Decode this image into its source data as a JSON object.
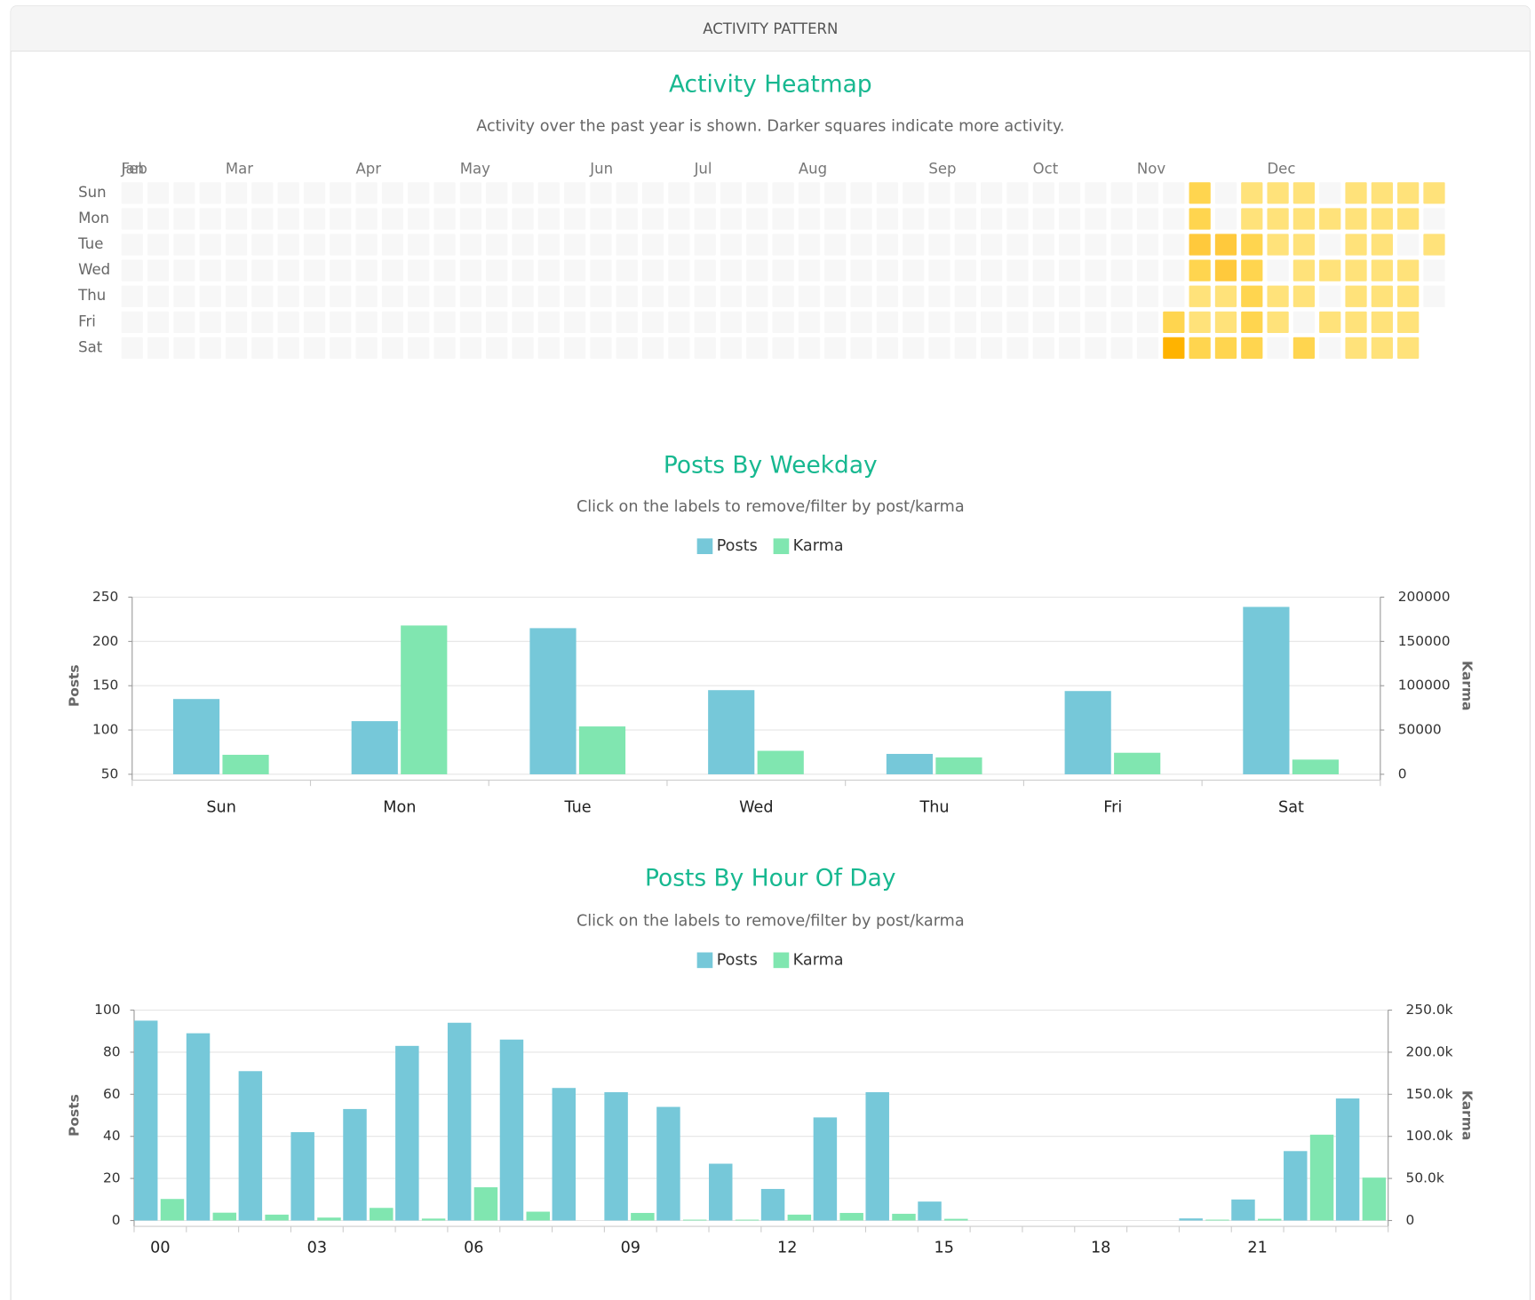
{
  "header": "ACTIVITY PATTERN",
  "chart_data": [
    {
      "type": "heatmap",
      "title": "Activity Heatmap",
      "subtitle": "Activity over the past year is shown. Darker squares indicate more activity.",
      "rows": [
        "Sun",
        "Mon",
        "Tue",
        "Wed",
        "Thu",
        "Fri",
        "Sat"
      ],
      "month_labels": [
        {
          "label": "Jan",
          "week": 0
        },
        {
          "label": "Feb",
          "week": 0
        },
        {
          "label": "Mar",
          "week": 4
        },
        {
          "label": "Apr",
          "week": 9
        },
        {
          "label": "May",
          "week": 13
        },
        {
          "label": "Jun",
          "week": 18
        },
        {
          "label": "Jul",
          "week": 22
        },
        {
          "label": "Aug",
          "week": 26
        },
        {
          "label": "Sep",
          "week": 31
        },
        {
          "label": "Oct",
          "week": 35
        },
        {
          "label": "Nov",
          "week": 39
        },
        {
          "label": "Dec",
          "week": 44
        }
      ],
      "colors": [
        "#f7f7f7",
        "#ffe27a",
        "#ffd54f",
        "#ffc93c",
        "#ffb300"
      ],
      "values": [
        [
          0,
          0,
          0,
          0,
          0,
          0,
          0
        ],
        [
          0,
          0,
          0,
          0,
          0,
          0,
          0
        ],
        [
          0,
          0,
          0,
          0,
          0,
          0,
          0
        ],
        [
          0,
          0,
          0,
          0,
          0,
          0,
          0
        ],
        [
          0,
          0,
          0,
          0,
          0,
          0,
          0
        ],
        [
          0,
          0,
          0,
          0,
          0,
          0,
          0
        ],
        [
          0,
          0,
          0,
          0,
          0,
          0,
          0
        ],
        [
          0,
          0,
          0,
          0,
          0,
          0,
          0
        ],
        [
          0,
          0,
          0,
          0,
          0,
          0,
          0
        ],
        [
          0,
          0,
          0,
          0,
          0,
          0,
          0
        ],
        [
          0,
          0,
          0,
          0,
          0,
          0,
          0
        ],
        [
          0,
          0,
          0,
          0,
          0,
          0,
          0
        ],
        [
          0,
          0,
          0,
          0,
          0,
          0,
          0
        ],
        [
          0,
          0,
          0,
          0,
          0,
          0,
          0
        ],
        [
          0,
          0,
          0,
          0,
          0,
          0,
          0
        ],
        [
          0,
          0,
          0,
          0,
          0,
          0,
          0
        ],
        [
          0,
          0,
          0,
          0,
          0,
          0,
          0
        ],
        [
          0,
          0,
          0,
          0,
          0,
          0,
          0
        ],
        [
          0,
          0,
          0,
          0,
          0,
          0,
          0
        ],
        [
          0,
          0,
          0,
          0,
          0,
          0,
          0
        ],
        [
          0,
          0,
          0,
          0,
          0,
          0,
          0
        ],
        [
          0,
          0,
          0,
          0,
          0,
          0,
          0
        ],
        [
          0,
          0,
          0,
          0,
          0,
          0,
          0
        ],
        [
          0,
          0,
          0,
          0,
          0,
          0,
          0
        ],
        [
          0,
          0,
          0,
          0,
          0,
          0,
          0
        ],
        [
          0,
          0,
          0,
          0,
          0,
          0,
          0
        ],
        [
          0,
          0,
          0,
          0,
          0,
          0,
          0
        ],
        [
          0,
          0,
          0,
          0,
          0,
          0,
          0
        ],
        [
          0,
          0,
          0,
          0,
          0,
          0,
          0
        ],
        [
          0,
          0,
          0,
          0,
          0,
          0,
          0
        ],
        [
          0,
          0,
          0,
          0,
          0,
          0,
          0
        ],
        [
          0,
          0,
          0,
          0,
          0,
          0,
          0
        ],
        [
          0,
          0,
          0,
          0,
          0,
          0,
          0
        ],
        [
          0,
          0,
          0,
          0,
          0,
          0,
          0
        ],
        [
          0,
          0,
          0,
          0,
          0,
          0,
          0
        ],
        [
          0,
          0,
          0,
          0,
          0,
          0,
          0
        ],
        [
          0,
          0,
          0,
          0,
          0,
          0,
          0
        ],
        [
          0,
          0,
          0,
          0,
          0,
          0,
          0
        ],
        [
          0,
          0,
          0,
          0,
          0,
          0,
          0
        ],
        [
          0,
          0,
          0,
          0,
          0,
          0,
          0
        ],
        [
          0,
          0,
          0,
          0,
          0,
          2,
          4
        ],
        [
          2,
          2,
          3,
          2,
          1,
          1,
          2
        ],
        [
          0,
          0,
          3,
          3,
          1,
          1,
          2
        ],
        [
          1,
          1,
          2,
          2,
          2,
          2,
          2
        ],
        [
          1,
          1,
          1,
          0,
          1,
          1,
          0
        ],
        [
          1,
          1,
          1,
          1,
          1,
          0,
          2
        ],
        [
          0,
          1,
          0,
          1,
          0,
          1,
          0
        ],
        [
          1,
          1,
          1,
          1,
          1,
          1,
          1
        ],
        [
          1,
          1,
          1,
          1,
          1,
          1,
          1
        ],
        [
          1,
          1,
          0,
          1,
          1,
          1,
          1
        ],
        [
          1,
          0,
          1,
          0,
          0,
          null,
          null
        ]
      ]
    },
    {
      "type": "bar",
      "title": "Posts By Weekday",
      "subtitle": "Click on the labels to remove/filter by post/karma",
      "categories": [
        "Sun",
        "Mon",
        "Tue",
        "Wed",
        "Thu",
        "Fri",
        "Sat"
      ],
      "series": [
        {
          "name": "Posts",
          "color": "#76c8d9",
          "values": [
            135,
            110,
            215,
            145,
            73,
            144,
            239
          ]
        },
        {
          "name": "Karma",
          "color": "#80e6b0",
          "axis": "y2",
          "values": [
            22000,
            168000,
            54000,
            26500,
            19000,
            24300,
            16600
          ]
        }
      ],
      "ylabel": "Posts",
      "y2label": "Karma",
      "ylim": [
        50,
        250
      ],
      "yticks": [
        50,
        100,
        150,
        200,
        250
      ],
      "y2lim": [
        0,
        200000
      ],
      "y2ticks": [
        0,
        50000,
        100000,
        150000,
        200000
      ],
      "grid": true
    },
    {
      "type": "bar",
      "title": "Posts By Hour Of Day",
      "subtitle": "Click on the labels to remove/filter by post/karma",
      "categories": [
        "00",
        null,
        null,
        "03",
        null,
        null,
        "06",
        null,
        null,
        "09",
        null,
        null,
        "12",
        null,
        null,
        "15",
        null,
        null,
        "18",
        null,
        null,
        "21",
        null,
        null
      ],
      "series": [
        {
          "name": "Posts",
          "color": "#76c8d9",
          "values": [
            95,
            89,
            71,
            42,
            53,
            83,
            94,
            86,
            63,
            61,
            54,
            27,
            15,
            49,
            61,
            9,
            0,
            0,
            0,
            0,
            1,
            10,
            33,
            58
          ]
        },
        {
          "name": "Karma",
          "color": "#80e6b0",
          "axis": "y2",
          "values": [
            25600,
            9300,
            7000,
            3500,
            15000,
            2300,
            39500,
            10500,
            0,
            9000,
            1000,
            1000,
            7000,
            9000,
            8000,
            2000,
            0,
            0,
            0,
            0,
            1000,
            2000,
            102000,
            51000
          ]
        }
      ],
      "ylabel": "Posts",
      "y2label": "Karma",
      "ylim": [
        0,
        100
      ],
      "yticks": [
        0,
        20,
        40,
        60,
        80,
        100
      ],
      "y2lim": [
        0,
        250000
      ],
      "y2ticks": [
        0,
        {
          "value": 50000,
          "label": "50.0k"
        },
        {
          "value": 100000,
          "label": "100.0k"
        },
        {
          "value": 150000,
          "label": "150.0k"
        },
        {
          "value": 200000,
          "label": "200.0k"
        },
        {
          "value": 250000,
          "label": "250.0k"
        }
      ],
      "grid": true
    }
  ]
}
